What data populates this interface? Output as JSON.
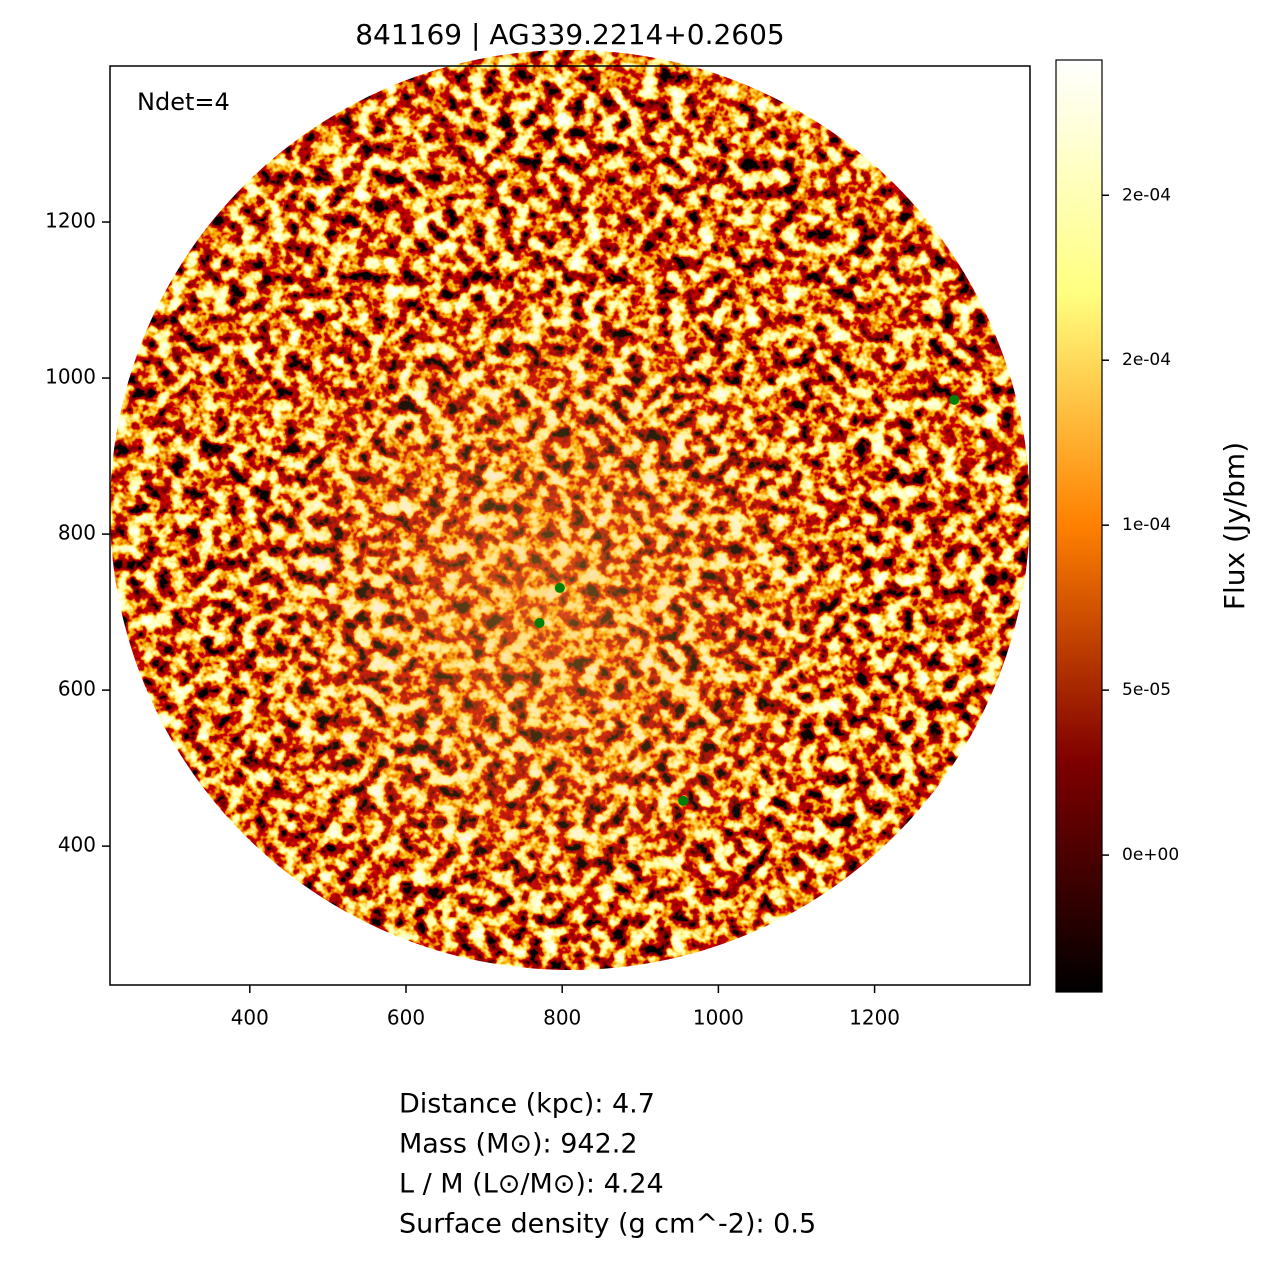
{
  "chart_data": {
    "type": "scatter",
    "title": "841169 | AG339.2214+0.2605",
    "annotation": "Ndet=4",
    "x": [
      797,
      771,
      955,
      1302
    ],
    "values": [
      731,
      686,
      458,
      972
    ],
    "color": "#008000",
    "xlim": [
      221,
      1399
    ],
    "ylim": [
      222,
      1400
    ],
    "xticks": [
      400,
      600,
      800,
      1000,
      1200
    ],
    "yticks": [
      400,
      600,
      800,
      1000,
      1200
    ],
    "colorbar": {
      "label": "Flux (Jy/bm)",
      "lim": [
        -4.15e-05,
        0.000241
      ],
      "ticks": [
        {
          "value": 0,
          "label": "0e+00"
        },
        {
          "value": 5e-05,
          "label": "5e-05"
        },
        {
          "value": 0.0001,
          "label": "1e-04"
        },
        {
          "value": 0.00015,
          "label": "2e-04"
        },
        {
          "value": 0.0002,
          "label": "2e-04"
        }
      ]
    },
    "info": [
      "Distance (kpc): 4.7",
      "Mass (M⊙): 942.2",
      "L / M (L⊙/M⊙): 4.24",
      "Surface density (g cm^-2): 0.5"
    ]
  }
}
